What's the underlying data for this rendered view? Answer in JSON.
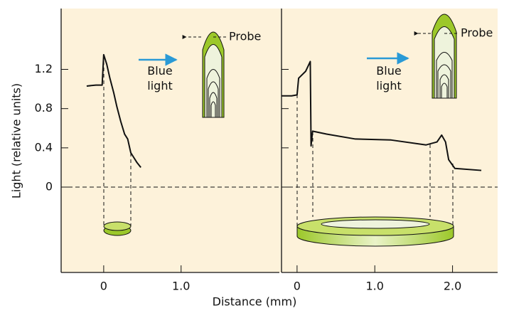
{
  "axis_labels": {
    "x_label": "Distance (mm)",
    "y_label": "Light (relative units)"
  },
  "chart_data": [
    {
      "type": "line",
      "annotations": {
        "probe": "Probe",
        "stimulus": "Blue light"
      },
      "xlim": [
        -0.55,
        2.27
      ],
      "ylim": [
        -0.87,
        1.82
      ],
      "xticks": [
        0,
        {
          "value": 1,
          "label": "1.0"
        }
      ],
      "yticks": [
        0,
        0.4,
        0.8,
        1.2
      ],
      "zero_line": true,
      "series": [
        {
          "color": "#111111",
          "x": [
            -0.22,
            -0.1,
            -0.02,
            0,
            0.04,
            0.08,
            0.13,
            0.17,
            0.22,
            0.27,
            0.31,
            0.35,
            0.39,
            0.43,
            0.48
          ],
          "values": [
            1.03,
            1.04,
            1.04,
            1.35,
            1.25,
            1.11,
            0.96,
            0.82,
            0.67,
            0.54,
            0.49,
            0.35,
            0.3,
            0.25,
            0.2
          ]
        }
      ]
    },
    {
      "type": "line",
      "annotations": {
        "probe": "Probe",
        "stimulus": "Blue light"
      },
      "xlim": [
        -0.2,
        2.58
      ],
      "ylim": [
        -0.87,
        1.82
      ],
      "xticks": [
        0,
        {
          "value": 1,
          "label": "1.0"
        },
        {
          "value": 2,
          "label": "2.0"
        }
      ],
      "yticks": [
        0,
        0.4,
        0.8,
        1.2
      ],
      "zero_line": true,
      "series": [
        {
          "color": "#111111",
          "x": [
            -0.2,
            -0.07,
            0,
            0.02,
            0.11,
            0.17,
            0.18,
            0.2,
            0.38,
            0.75,
            1.21,
            1.66,
            1.8,
            1.86,
            1.91,
            1.95,
            2.03,
            2.37
          ],
          "values": [
            0.93,
            0.93,
            0.94,
            1.11,
            1.18,
            1.28,
            0.42,
            0.57,
            0.54,
            0.49,
            0.48,
            0.43,
            0.46,
            0.53,
            0.46,
            0.28,
            0.19,
            0.17
          ]
        }
      ]
    }
  ]
}
